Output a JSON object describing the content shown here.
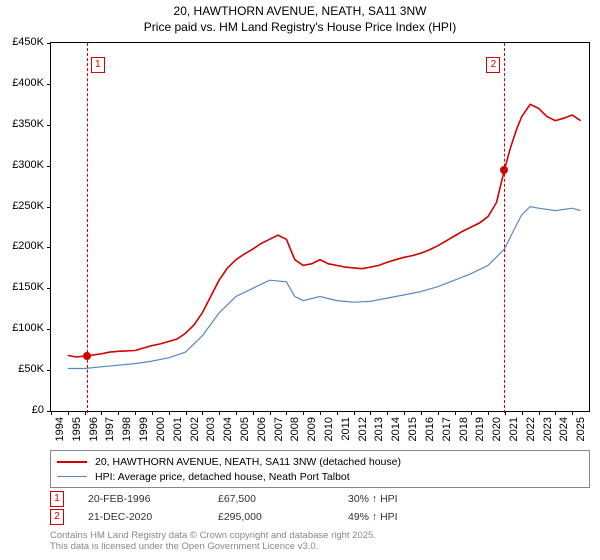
{
  "title": {
    "line1": "20, HAWTHORN AVENUE, NEATH, SA11 3NW",
    "line2": "Price paid vs. HM Land Registry's House Price Index (HPI)"
  },
  "chart": {
    "type": "line",
    "background_color": "#ffffff",
    "border_color": "#000000",
    "ylim": [
      0,
      450000
    ],
    "ytick_step": 50000,
    "yticks": [
      {
        "v": 0,
        "label": "£0"
      },
      {
        "v": 50000,
        "label": "£50K"
      },
      {
        "v": 100000,
        "label": "£100K"
      },
      {
        "v": 150000,
        "label": "£150K"
      },
      {
        "v": 200000,
        "label": "£200K"
      },
      {
        "v": 250000,
        "label": "£250K"
      },
      {
        "v": 300000,
        "label": "£300K"
      },
      {
        "v": 350000,
        "label": "£350K"
      },
      {
        "v": 400000,
        "label": "£400K"
      },
      {
        "v": 450000,
        "label": "£450K"
      }
    ],
    "xlim": [
      1994,
      2026
    ],
    "xticks": [
      1994,
      1995,
      1996,
      1997,
      1998,
      1999,
      2000,
      2001,
      2002,
      2003,
      2004,
      2005,
      2006,
      2007,
      2008,
      2009,
      2010,
      2011,
      2012,
      2013,
      2014,
      2015,
      2016,
      2017,
      2018,
      2019,
      2020,
      2021,
      2022,
      2023,
      2024,
      2025
    ],
    "tick_fontsize": 11,
    "series": [
      {
        "name": "property",
        "label": "20, HAWTHORN AVENUE, NEATH, SA11 3NW (detached house)",
        "color": "#d40000",
        "line_width": 1.6,
        "data": [
          [
            1995.0,
            68000
          ],
          [
            1995.5,
            66000
          ],
          [
            1996.13,
            67500
          ],
          [
            1996.5,
            68500
          ],
          [
            1997.0,
            70000
          ],
          [
            1997.5,
            72000
          ],
          [
            1998.0,
            73000
          ],
          [
            1998.5,
            73500
          ],
          [
            1999.0,
            74000
          ],
          [
            1999.5,
            77000
          ],
          [
            2000.0,
            80000
          ],
          [
            2000.5,
            82000
          ],
          [
            2001.0,
            85000
          ],
          [
            2001.5,
            88000
          ],
          [
            2002.0,
            95000
          ],
          [
            2002.5,
            105000
          ],
          [
            2003.0,
            120000
          ],
          [
            2003.5,
            140000
          ],
          [
            2004.0,
            160000
          ],
          [
            2004.5,
            175000
          ],
          [
            2005.0,
            185000
          ],
          [
            2005.5,
            192000
          ],
          [
            2006.0,
            198000
          ],
          [
            2006.5,
            205000
          ],
          [
            2007.0,
            210000
          ],
          [
            2007.5,
            215000
          ],
          [
            2008.0,
            210000
          ],
          [
            2008.5,
            185000
          ],
          [
            2009.0,
            178000
          ],
          [
            2009.5,
            180000
          ],
          [
            2010.0,
            185000
          ],
          [
            2010.5,
            180000
          ],
          [
            2011.0,
            178000
          ],
          [
            2011.5,
            176000
          ],
          [
            2012.0,
            175000
          ],
          [
            2012.5,
            174000
          ],
          [
            2013.0,
            176000
          ],
          [
            2013.5,
            178000
          ],
          [
            2014.0,
            182000
          ],
          [
            2014.5,
            185000
          ],
          [
            2015.0,
            188000
          ],
          [
            2015.5,
            190000
          ],
          [
            2016.0,
            193000
          ],
          [
            2016.5,
            197000
          ],
          [
            2017.0,
            202000
          ],
          [
            2017.5,
            208000
          ],
          [
            2018.0,
            214000
          ],
          [
            2018.5,
            220000
          ],
          [
            2019.0,
            225000
          ],
          [
            2019.5,
            230000
          ],
          [
            2020.0,
            238000
          ],
          [
            2020.5,
            255000
          ],
          [
            2020.97,
            295000
          ],
          [
            2021.3,
            320000
          ],
          [
            2021.7,
            345000
          ],
          [
            2022.0,
            360000
          ],
          [
            2022.5,
            375000
          ],
          [
            2023.0,
            370000
          ],
          [
            2023.5,
            360000
          ],
          [
            2024.0,
            355000
          ],
          [
            2024.5,
            358000
          ],
          [
            2025.0,
            362000
          ],
          [
            2025.5,
            355000
          ]
        ]
      },
      {
        "name": "hpi",
        "label": "HPI: Average price, detached house, Neath Port Talbot",
        "color": "#5a87c6",
        "line_width": 1.2,
        "data": [
          [
            1995.0,
            52000
          ],
          [
            1996.0,
            52000
          ],
          [
            1997.0,
            54000
          ],
          [
            1998.0,
            56000
          ],
          [
            1999.0,
            58000
          ],
          [
            2000.0,
            61000
          ],
          [
            2001.0,
            65000
          ],
          [
            2002.0,
            72000
          ],
          [
            2003.0,
            92000
          ],
          [
            2004.0,
            120000
          ],
          [
            2005.0,
            140000
          ],
          [
            2006.0,
            150000
          ],
          [
            2007.0,
            160000
          ],
          [
            2008.0,
            158000
          ],
          [
            2008.5,
            140000
          ],
          [
            2009.0,
            135000
          ],
          [
            2010.0,
            140000
          ],
          [
            2011.0,
            135000
          ],
          [
            2012.0,
            133000
          ],
          [
            2013.0,
            134000
          ],
          [
            2014.0,
            138000
          ],
          [
            2015.0,
            142000
          ],
          [
            2016.0,
            146000
          ],
          [
            2017.0,
            152000
          ],
          [
            2018.0,
            160000
          ],
          [
            2019.0,
            168000
          ],
          [
            2020.0,
            178000
          ],
          [
            2020.97,
            198000
          ],
          [
            2021.5,
            220000
          ],
          [
            2022.0,
            240000
          ],
          [
            2022.5,
            250000
          ],
          [
            2023.0,
            248000
          ],
          [
            2024.0,
            245000
          ],
          [
            2025.0,
            248000
          ],
          [
            2025.5,
            245000
          ]
        ]
      }
    ],
    "markers": [
      {
        "id": "1",
        "year": 1996.13,
        "color": "#d40000"
      },
      {
        "id": "2",
        "year": 2020.97,
        "color": "#d40000"
      }
    ],
    "sale_points": [
      {
        "year": 1996.13,
        "value": 67500,
        "color": "#d40000"
      },
      {
        "year": 2020.97,
        "value": 295000,
        "color": "#d40000"
      }
    ]
  },
  "legend": {
    "items": [
      {
        "color": "#d40000",
        "width": 2,
        "label": "20, HAWTHORN AVENUE, NEATH, SA11 3NW (detached house)"
      },
      {
        "color": "#5a87c6",
        "width": 1.2,
        "label": "HPI: Average price, detached house, Neath Port Talbot"
      }
    ]
  },
  "footer_sales": [
    {
      "id": "1",
      "color": "#d40000",
      "date": "20-FEB-1996",
      "price": "£67,500",
      "delta": "30% ↑ HPI"
    },
    {
      "id": "2",
      "color": "#d40000",
      "date": "21-DEC-2020",
      "price": "£295,000",
      "delta": "49% ↑ HPI"
    }
  ],
  "copyright": {
    "line1": "Contains HM Land Registry data © Crown copyright and database right 2025.",
    "line2": "This data is licensed under the Open Government Licence v3.0."
  }
}
